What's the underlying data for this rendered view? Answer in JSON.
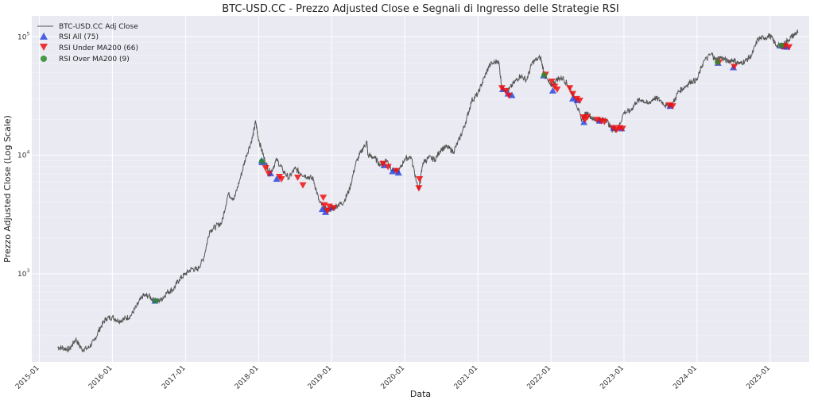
{
  "chart_data": {
    "type": "line",
    "title": "BTC-USD.CC - Prezzo Adjusted Close e Segnali di Ingresso delle Strategie RSI",
    "xlabel": "Data",
    "ylabel": "Prezzo Adjusted Close (Log Scale)",
    "yscale": "log",
    "ylim": [
      180,
      150000
    ],
    "xlim": [
      "2014-11-24",
      "2025-07-15"
    ],
    "grid": true,
    "legend_position": "top-left",
    "x_ticks": [
      "2015-01",
      "2016-01",
      "2017-01",
      "2018-01",
      "2019-01",
      "2020-01",
      "2021-01",
      "2022-01",
      "2023-01",
      "2024-01",
      "2025-01"
    ],
    "y_ticks": [
      {
        "value": 1000,
        "base": "10",
        "exp": "3"
      },
      {
        "value": 10000,
        "base": "10",
        "exp": "4"
      },
      {
        "value": 100000,
        "base": "10",
        "exp": "5"
      }
    ],
    "colors": {
      "line": "#555555",
      "rsi_all": "#1f3fe0",
      "rsi_under": "#ee1111",
      "rsi_over": "#2e8b2e",
      "plot_bg": "#eaeaf2",
      "grid": "#ffffff"
    },
    "series": [
      {
        "name": "BTC-USD.CC Adj Close",
        "kind": "line",
        "points": [
          [
            "2015-04-01",
            240
          ],
          [
            "2015-05-01",
            235
          ],
          [
            "2015-06-01",
            230
          ],
          [
            "2015-07-01",
            280
          ],
          [
            "2015-08-01",
            230
          ],
          [
            "2015-09-01",
            235
          ],
          [
            "2015-10-01",
            270
          ],
          [
            "2015-11-01",
            350
          ],
          [
            "2015-12-01",
            420
          ],
          [
            "2016-01-01",
            430
          ],
          [
            "2016-02-01",
            400
          ],
          [
            "2016-03-01",
            415
          ],
          [
            "2016-04-01",
            440
          ],
          [
            "2016-05-01",
            530
          ],
          [
            "2016-06-01",
            650
          ],
          [
            "2016-07-01",
            650
          ],
          [
            "2016-08-01",
            580
          ],
          [
            "2016-09-01",
            605
          ],
          [
            "2016-10-01",
            700
          ],
          [
            "2016-11-01",
            740
          ],
          [
            "2016-12-01",
            900
          ],
          [
            "2017-01-01",
            1000
          ],
          [
            "2017-02-01",
            1100
          ],
          [
            "2017-03-01",
            1080
          ],
          [
            "2017-04-01",
            1350
          ],
          [
            "2017-05-01",
            2300
          ],
          [
            "2017-06-01",
            2500
          ],
          [
            "2017-07-01",
            2700
          ],
          [
            "2017-08-01",
            4700
          ],
          [
            "2017-09-01",
            4300
          ],
          [
            "2017-10-01",
            6400
          ],
          [
            "2017-11-01",
            10000
          ],
          [
            "2017-12-01",
            14000
          ],
          [
            "2017-12-17",
            19300
          ],
          [
            "2018-01-01",
            13500
          ],
          [
            "2018-02-01",
            9000
          ],
          [
            "2018-03-01",
            7000
          ],
          [
            "2018-04-01",
            9200
          ],
          [
            "2018-05-01",
            7500
          ],
          [
            "2018-06-01",
            6400
          ],
          [
            "2018-07-01",
            7700
          ],
          [
            "2018-08-01",
            7000
          ],
          [
            "2018-09-01",
            6600
          ],
          [
            "2018-10-01",
            6300
          ],
          [
            "2018-11-01",
            4000
          ],
          [
            "2018-12-01",
            3500
          ],
          [
            "2019-01-01",
            3500
          ],
          [
            "2019-02-01",
            3800
          ],
          [
            "2019-03-01",
            4000
          ],
          [
            "2019-04-01",
            5200
          ],
          [
            "2019-05-01",
            8500
          ],
          [
            "2019-06-01",
            11000
          ],
          [
            "2019-06-26",
            13000
          ],
          [
            "2019-07-01",
            10000
          ],
          [
            "2019-08-01",
            9600
          ],
          [
            "2019-09-01",
            8300
          ],
          [
            "2019-10-01",
            9200
          ],
          [
            "2019-11-01",
            7500
          ],
          [
            "2019-12-01",
            7200
          ],
          [
            "2020-01-01",
            9300
          ],
          [
            "2020-02-01",
            9700
          ],
          [
            "2020-03-12",
            5000
          ],
          [
            "2020-04-01",
            8700
          ],
          [
            "2020-05-01",
            9500
          ],
          [
            "2020-06-01",
            9200
          ],
          [
            "2020-07-01",
            11300
          ],
          [
            "2020-08-01",
            11700
          ],
          [
            "2020-09-01",
            10700
          ],
          [
            "2020-10-01",
            13700
          ],
          [
            "2020-11-01",
            19000
          ],
          [
            "2020-12-01",
            29000
          ],
          [
            "2021-01-01",
            33000
          ],
          [
            "2021-02-01",
            45000
          ],
          [
            "2021-03-01",
            58000
          ],
          [
            "2021-04-14",
            63000
          ],
          [
            "2021-05-01",
            37000
          ],
          [
            "2021-06-01",
            35000
          ],
          [
            "2021-07-01",
            41000
          ],
          [
            "2021-08-01",
            47000
          ],
          [
            "2021-09-01",
            43000
          ],
          [
            "2021-10-01",
            61000
          ],
          [
            "2021-11-10",
            67000
          ],
          [
            "2021-12-01",
            47000
          ],
          [
            "2022-01-01",
            38000
          ],
          [
            "2022-02-01",
            44000
          ],
          [
            "2022-03-01",
            45000
          ],
          [
            "2022-04-01",
            38000
          ],
          [
            "2022-05-01",
            30000
          ],
          [
            "2022-06-01",
            20000
          ],
          [
            "2022-07-01",
            23000
          ],
          [
            "2022-08-01",
            20000
          ],
          [
            "2022-09-01",
            19500
          ],
          [
            "2022-10-01",
            20500
          ],
          [
            "2022-11-01",
            16500
          ],
          [
            "2022-12-01",
            16500
          ],
          [
            "2023-01-01",
            23000
          ],
          [
            "2023-02-01",
            23500
          ],
          [
            "2023-03-01",
            28000
          ],
          [
            "2023-04-01",
            29500
          ],
          [
            "2023-05-01",
            27000
          ],
          [
            "2023-06-01",
            30500
          ],
          [
            "2023-07-01",
            29200
          ],
          [
            "2023-08-01",
            26000
          ],
          [
            "2023-09-01",
            27000
          ],
          [
            "2023-10-01",
            34500
          ],
          [
            "2023-11-01",
            37800
          ],
          [
            "2023-12-01",
            42000
          ],
          [
            "2024-01-01",
            43000
          ],
          [
            "2024-02-01",
            61000
          ],
          [
            "2024-03-14",
            72000
          ],
          [
            "2024-04-01",
            64000
          ],
          [
            "2024-05-01",
            67000
          ],
          [
            "2024-06-01",
            62000
          ],
          [
            "2024-07-01",
            64000
          ],
          [
            "2024-08-01",
            59000
          ],
          [
            "2024-09-01",
            63000
          ],
          [
            "2024-10-01",
            70000
          ],
          [
            "2024-11-01",
            96000
          ],
          [
            "2024-12-01",
            98000
          ],
          [
            "2025-01-01",
            102000
          ],
          [
            "2025-02-01",
            84000
          ],
          [
            "2025-03-01",
            84000
          ],
          [
            "2025-04-01",
            94000
          ],
          [
            "2025-05-01",
            104000
          ],
          [
            "2025-05-20",
            110000
          ]
        ]
      },
      {
        "name": "RSI All (75)",
        "kind": "marker",
        "marker": "triangle-up",
        "points": [
          [
            "2016-08-01",
            590
          ],
          [
            "2018-01-16",
            9000
          ],
          [
            "2018-01-18",
            8700
          ],
          [
            "2018-03-01",
            7000
          ],
          [
            "2018-04-01",
            6300
          ],
          [
            "2018-11-15",
            3500
          ],
          [
            "2018-12-01",
            3300
          ],
          [
            "2019-01-01",
            3600
          ],
          [
            "2019-09-20",
            8200
          ],
          [
            "2019-11-01",
            7300
          ],
          [
            "2019-12-01",
            7100
          ],
          [
            "2021-05-05",
            36000
          ],
          [
            "2021-06-01",
            33000
          ],
          [
            "2021-06-20",
            32000
          ],
          [
            "2021-11-25",
            47000
          ],
          [
            "2022-01-10",
            35000
          ],
          [
            "2022-04-20",
            30000
          ],
          [
            "2022-05-12",
            29000
          ],
          [
            "2022-06-15",
            19000
          ],
          [
            "2022-09-01",
            19500
          ],
          [
            "2022-11-10",
            17000
          ],
          [
            "2022-12-20",
            16800
          ],
          [
            "2023-08-20",
            26000
          ],
          [
            "2024-04-15",
            60000
          ],
          [
            "2024-07-01",
            55000
          ],
          [
            "2025-02-25",
            84000
          ],
          [
            "2025-03-10",
            83000
          ],
          [
            "2025-03-25",
            82000
          ]
        ]
      },
      {
        "name": "RSI Under MA200 (66)",
        "kind": "marker",
        "marker": "triangle-down",
        "points": [
          [
            "2018-02-05",
            7800
          ],
          [
            "2018-02-20",
            7000
          ],
          [
            "2018-04-15",
            6600
          ],
          [
            "2018-04-25",
            6300
          ],
          [
            "2018-07-15",
            6500
          ],
          [
            "2018-08-10",
            5600
          ],
          [
            "2018-11-20",
            4400
          ],
          [
            "2018-11-25",
            3800
          ],
          [
            "2018-12-10",
            3400
          ],
          [
            "2018-12-20",
            3700
          ],
          [
            "2019-01-10",
            3600
          ],
          [
            "2019-09-15",
            8500
          ],
          [
            "2019-10-10",
            8000
          ],
          [
            "2019-11-20",
            7400
          ],
          [
            "2020-03-12",
            5300
          ],
          [
            "2020-03-15",
            6300
          ],
          [
            "2021-05-01",
            37000
          ],
          [
            "2021-05-20",
            35000
          ],
          [
            "2021-06-05",
            32000
          ],
          [
            "2021-12-05",
            48000
          ],
          [
            "2022-01-05",
            42000
          ],
          [
            "2022-01-20",
            38000
          ],
          [
            "2022-02-01",
            36000
          ],
          [
            "2022-04-05",
            37000
          ],
          [
            "2022-04-20",
            33000
          ],
          [
            "2022-05-10",
            30000
          ],
          [
            "2022-05-25",
            29000
          ],
          [
            "2022-06-13",
            21000
          ],
          [
            "2022-06-20",
            20000
          ],
          [
            "2022-07-01",
            21000
          ],
          [
            "2022-08-20",
            20000
          ],
          [
            "2022-09-10",
            19500
          ],
          [
            "2022-09-25",
            19200
          ],
          [
            "2022-11-10",
            17000
          ],
          [
            "2022-11-25",
            16500
          ],
          [
            "2022-12-10",
            17000
          ],
          [
            "2022-12-25",
            16800
          ],
          [
            "2023-08-15",
            26500
          ],
          [
            "2023-09-01",
            26000
          ],
          [
            "2024-04-20",
            61000
          ],
          [
            "2024-07-05",
            56000
          ],
          [
            "2025-03-05",
            83000
          ],
          [
            "2025-03-15",
            84000
          ],
          [
            "2025-04-05",
            82000
          ]
        ]
      },
      {
        "name": "RSI Over MA200 (9)",
        "kind": "marker",
        "marker": "circle",
        "points": [
          [
            "2016-08-05",
            590
          ],
          [
            "2018-01-17",
            8900
          ],
          [
            "2021-11-28",
            47500
          ],
          [
            "2024-04-12",
            61000
          ],
          [
            "2025-02-27",
            84500
          ]
        ]
      }
    ]
  }
}
